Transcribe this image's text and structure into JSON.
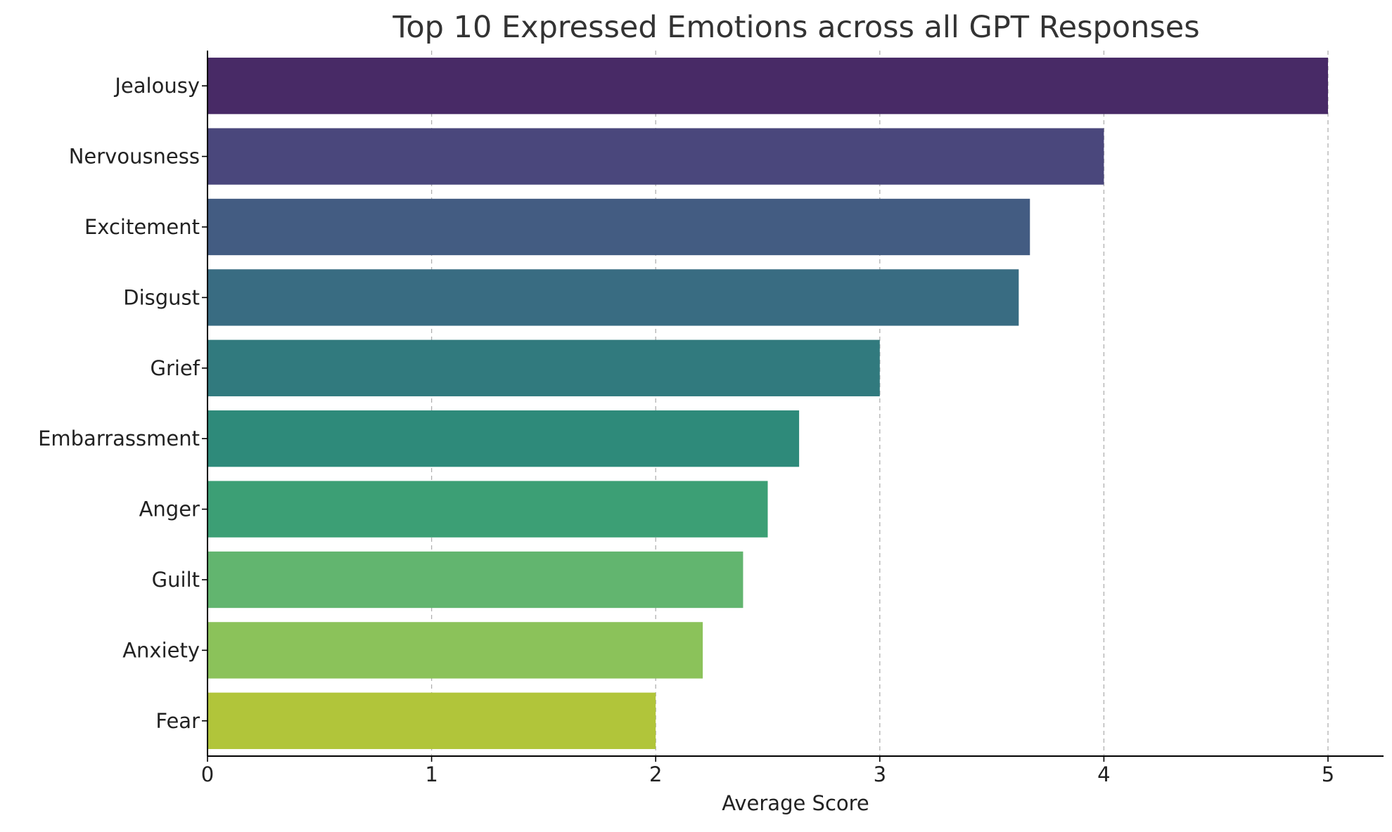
{
  "chart_data": {
    "type": "bar",
    "orientation": "horizontal",
    "title": "Top 10 Expressed Emotions across all GPT Responses",
    "xlabel": "Average Score",
    "ylabel": "",
    "xlim": [
      0,
      5.25
    ],
    "xticks": [
      0,
      1,
      2,
      3,
      4,
      5
    ],
    "grid": "x-dashed",
    "categories": [
      "Jealousy",
      "Nervousness",
      "Excitement",
      "Disgust",
      "Grief",
      "Embarrassment",
      "Anger",
      "Guilt",
      "Anxiety",
      "Fear"
    ],
    "values": [
      5.0,
      4.0,
      3.67,
      3.62,
      3.0,
      2.64,
      2.5,
      2.39,
      2.21,
      2.0
    ],
    "colors": [
      "#482A66",
      "#4A477C",
      "#435C82",
      "#396C82",
      "#317A7E",
      "#2E8A7A",
      "#3C9F75",
      "#62B56F",
      "#8BC25A",
      "#B1C53A"
    ]
  }
}
